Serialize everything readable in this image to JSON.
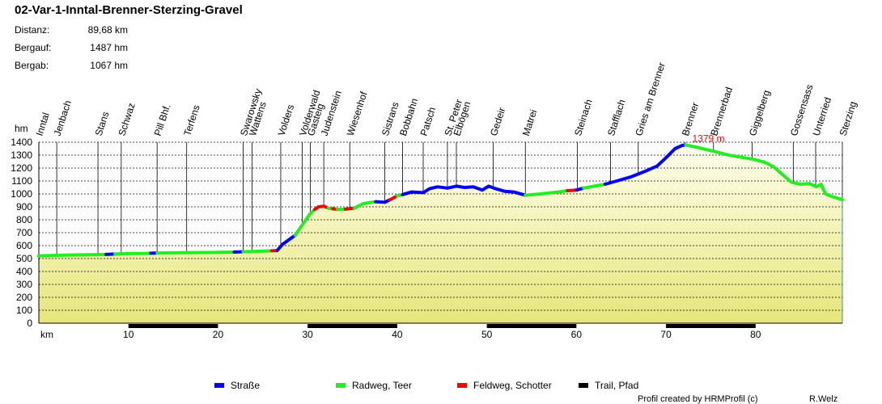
{
  "title": "02-Var-1-Inntal-Brenner-Sterzing-Gravel",
  "stats": [
    {
      "label": "Distanz:",
      "value": "89,68 km"
    },
    {
      "label": "Bergauf:",
      "value": "1487 hm"
    },
    {
      "label": "Bergab:",
      "value": "1067 hm"
    }
  ],
  "legend": [
    {
      "label": "Straße",
      "color": "#0000ff"
    },
    {
      "label": "Radweg, Teer",
      "color": "#22ee22"
    },
    {
      "label": "Feldweg, Schotter",
      "color": "#ff0000"
    },
    {
      "label": "Trail, Pfad",
      "color": "#000000"
    }
  ],
  "credit": "Profil created by HRMProfil (c)",
  "author": "R.Welz",
  "chart_data": {
    "type": "area",
    "ylabel": "hm",
    "xlabel": "km",
    "xlim": [
      0,
      89.68
    ],
    "ylim": [
      0,
      1400
    ],
    "yticks": [
      0,
      100,
      200,
      300,
      400,
      500,
      600,
      700,
      800,
      900,
      1000,
      1100,
      1200,
      1300,
      1400
    ],
    "xticks": [
      10,
      20,
      30,
      40,
      50,
      60,
      70,
      80
    ],
    "max_label": "1379 m",
    "max_point": [
      72.2,
      1379
    ],
    "colors": {
      "fill_low": "#e6e67a",
      "fill_high": "#ffffee",
      "axis_bar": "#000000"
    },
    "places": [
      {
        "name": "Inntal",
        "km": 0
      },
      {
        "name": "Jenbach",
        "km": 2
      },
      {
        "name": "Stans",
        "km": 6.6
      },
      {
        "name": "Schwaz",
        "km": 9.2
      },
      {
        "name": "Pill Bhf.",
        "km": 13.2
      },
      {
        "name": "Terfens",
        "km": 16.5
      },
      {
        "name": "Swarowsky",
        "km": 22.8
      },
      {
        "name": "Wattens",
        "km": 23.8
      },
      {
        "name": "Volders",
        "km": 27
      },
      {
        "name": "Volderwald",
        "km": 29.4
      },
      {
        "name": "Gasteig",
        "km": 30.3
      },
      {
        "name": "Judenstein",
        "km": 31.8
      },
      {
        "name": "Wiesenhof",
        "km": 34.7
      },
      {
        "name": "Sistrans",
        "km": 38.6
      },
      {
        "name": "Bobbahn",
        "km": 40.6
      },
      {
        "name": "Patsch",
        "km": 42.9
      },
      {
        "name": "St. Peter",
        "km": 45.6
      },
      {
        "name": "Elbögen",
        "km": 46.6
      },
      {
        "name": "Gedeir",
        "km": 50.7
      },
      {
        "name": "Matrei",
        "km": 54.3
      },
      {
        "name": "Steinach",
        "km": 60.1
      },
      {
        "name": "Stafflach",
        "km": 63.8
      },
      {
        "name": "Gries am Brenner",
        "km": 66.9
      },
      {
        "name": "Brenner",
        "km": 72.1
      },
      {
        "name": "Brennerbad",
        "km": 75.3
      },
      {
        "name": "Giggelberg",
        "km": 79.6
      },
      {
        "name": "Gossensass",
        "km": 84.2
      },
      {
        "name": "Unterried",
        "km": 86.7
      },
      {
        "name": "Sterzing",
        "km": 89.68
      }
    ],
    "series": [
      {
        "surface": "Radweg, Teer",
        "points": [
          [
            0,
            520
          ],
          [
            2,
            525
          ],
          [
            4,
            528
          ],
          [
            6,
            530
          ],
          [
            7.5,
            532
          ]
        ]
      },
      {
        "surface": "Straße",
        "points": [
          [
            7.5,
            532
          ],
          [
            8.5,
            535
          ]
        ]
      },
      {
        "surface": "Radweg, Teer",
        "points": [
          [
            8.5,
            535
          ],
          [
            10,
            538
          ],
          [
            12,
            540
          ],
          [
            12.5,
            541
          ]
        ]
      },
      {
        "surface": "Straße",
        "points": [
          [
            12.5,
            541
          ],
          [
            13.2,
            543
          ]
        ]
      },
      {
        "surface": "Radweg, Teer",
        "points": [
          [
            13.2,
            543
          ],
          [
            16,
            545
          ],
          [
            19,
            547
          ],
          [
            21.8,
            550
          ]
        ]
      },
      {
        "surface": "Straße",
        "points": [
          [
            21.8,
            550
          ],
          [
            22.8,
            553
          ]
        ]
      },
      {
        "surface": "Radweg, Teer",
        "points": [
          [
            22.8,
            553
          ],
          [
            24.5,
            556
          ],
          [
            26,
            560
          ]
        ]
      },
      {
        "surface": "Feldweg, Schotter",
        "points": [
          [
            26,
            560
          ],
          [
            26.6,
            562
          ]
        ]
      },
      {
        "surface": "Straße",
        "points": [
          [
            26.6,
            562
          ],
          [
            27.2,
            610
          ],
          [
            28,
            650
          ],
          [
            28.6,
            680
          ]
        ]
      },
      {
        "surface": "Radweg, Teer",
        "points": [
          [
            28.6,
            680
          ],
          [
            29.4,
            760
          ],
          [
            30.2,
            840
          ],
          [
            30.8,
            880
          ]
        ]
      },
      {
        "surface": "Feldweg, Schotter",
        "points": [
          [
            30.8,
            880
          ],
          [
            31.2,
            900
          ],
          [
            31.8,
            905
          ],
          [
            32.3,
            890
          ]
        ]
      },
      {
        "surface": "Radweg, Teer",
        "points": [
          [
            32.3,
            890
          ],
          [
            32.8,
            885
          ]
        ]
      },
      {
        "surface": "Feldweg, Schotter",
        "points": [
          [
            32.8,
            885
          ],
          [
            33.3,
            880
          ]
        ]
      },
      {
        "surface": "Radweg, Teer",
        "points": [
          [
            33.3,
            880
          ],
          [
            34.2,
            882
          ]
        ]
      },
      {
        "surface": "Feldweg, Schotter",
        "points": [
          [
            34.2,
            882
          ],
          [
            35.2,
            890
          ]
        ]
      },
      {
        "surface": "Radweg, Teer",
        "points": [
          [
            35.2,
            890
          ],
          [
            36.2,
            925
          ],
          [
            37.6,
            940
          ]
        ]
      },
      {
        "surface": "Straße",
        "points": [
          [
            37.6,
            940
          ],
          [
            38.6,
            935
          ],
          [
            39.2,
            955
          ]
        ]
      },
      {
        "surface": "Feldweg, Schotter",
        "points": [
          [
            39.2,
            955
          ],
          [
            40,
            985
          ]
        ]
      },
      {
        "surface": "Radweg, Teer",
        "points": [
          [
            40,
            985
          ],
          [
            40.6,
            995
          ]
        ]
      },
      {
        "surface": "Straße",
        "points": [
          [
            40.6,
            995
          ],
          [
            41.6,
            1015
          ],
          [
            42.9,
            1010
          ],
          [
            43.6,
            1040
          ],
          [
            44.5,
            1055
          ],
          [
            45.6,
            1045
          ],
          [
            46.6,
            1060
          ],
          [
            47.5,
            1050
          ],
          [
            48.5,
            1055
          ],
          [
            49.5,
            1030
          ],
          [
            50.2,
            1060
          ],
          [
            51,
            1040
          ],
          [
            52,
            1020
          ],
          [
            53,
            1015
          ],
          [
            54.3,
            990
          ]
        ]
      },
      {
        "surface": "Radweg, Teer",
        "points": [
          [
            54.3,
            990
          ],
          [
            56,
            1000
          ],
          [
            58,
            1015
          ],
          [
            59,
            1025
          ]
        ]
      },
      {
        "surface": "Feldweg, Schotter",
        "points": [
          [
            59,
            1025
          ],
          [
            60,
            1030
          ]
        ]
      },
      {
        "surface": "Straße",
        "points": [
          [
            60,
            1030
          ],
          [
            60.8,
            1045
          ]
        ]
      },
      {
        "surface": "Radweg, Teer",
        "points": [
          [
            60.8,
            1045
          ],
          [
            62,
            1060
          ],
          [
            63.2,
            1075
          ]
        ]
      },
      {
        "surface": "Straße",
        "points": [
          [
            63.2,
            1075
          ],
          [
            64.5,
            1100
          ],
          [
            66,
            1130
          ],
          [
            67.5,
            1170
          ],
          [
            69,
            1215
          ],
          [
            70,
            1280
          ],
          [
            71,
            1350
          ],
          [
            71.8,
            1375
          ],
          [
            72.2,
            1379
          ]
        ]
      },
      {
        "surface": "Radweg, Teer",
        "points": [
          [
            72.2,
            1379
          ],
          [
            73.5,
            1360
          ],
          [
            75.3,
            1330
          ],
          [
            77,
            1300
          ],
          [
            79.6,
            1270
          ],
          [
            81,
            1245
          ],
          [
            82,
            1210
          ],
          [
            83,
            1150
          ],
          [
            84,
            1090
          ],
          [
            85,
            1075
          ],
          [
            86,
            1080
          ],
          [
            86.8,
            1055
          ],
          [
            87.3,
            1075
          ],
          [
            87.8,
            1000
          ],
          [
            88.5,
            980
          ],
          [
            89.68,
            955
          ]
        ]
      }
    ]
  }
}
